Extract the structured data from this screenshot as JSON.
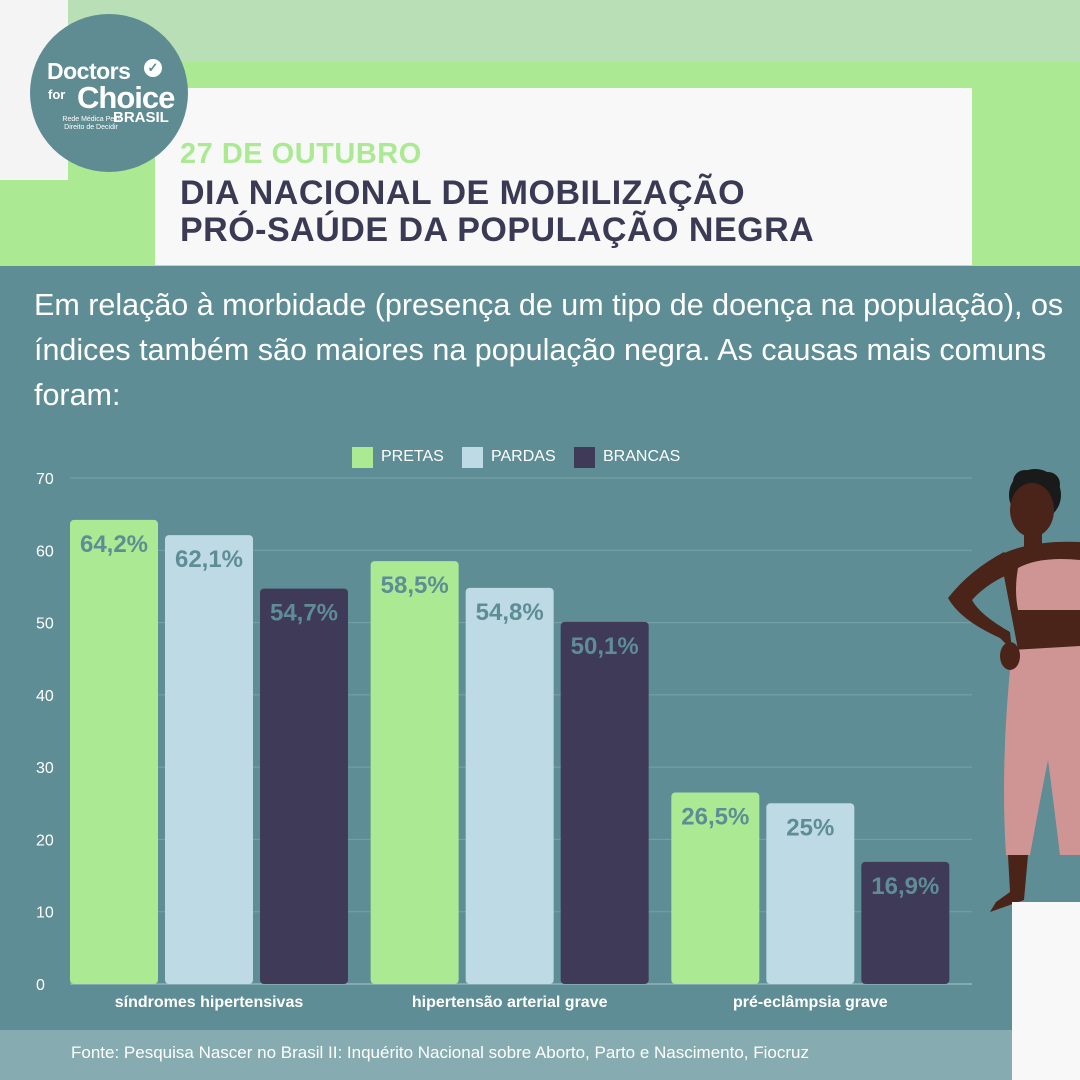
{
  "logo": {
    "line1": "Doctors",
    "line2": "for",
    "line3": "Choice",
    "line4": "BRASIL",
    "tagline": "Rede Médica Pelo Direito de Decidir",
    "check_icon": "check-circle-icon"
  },
  "header": {
    "date": "27 DE OUTUBRO",
    "title_line1": "DIA NACIONAL DE MOBILIZAÇÃO",
    "title_line2": "PRÓ-SAÚDE DA POPULAÇÃO NEGRA"
  },
  "intro": "Em relação à morbidade (presença de um tipo de doença na população), os índices também são maiores na população negra. As causas mais comuns foram:",
  "chart_data": {
    "type": "bar",
    "categories": [
      "síndromes hipertensivas",
      "hipertensão arterial grave",
      "pré-eclâmpsia grave"
    ],
    "series": [
      {
        "name": "PRETAS",
        "values": [
          64.2,
          58.5,
          26.5
        ],
        "labels": [
          "64,2%",
          "58,5%",
          "26,5%"
        ],
        "color": "#abe993",
        "label_color": "#5e8d95"
      },
      {
        "name": "PARDAS",
        "values": [
          62.1,
          54.8,
          25
        ],
        "labels": [
          "62,1%",
          "54,8%",
          "25%"
        ],
        "color": "#bedae4",
        "label_color": "#5e8d95"
      },
      {
        "name": "BRANCAS",
        "values": [
          54.7,
          50.1,
          16.9
        ],
        "labels": [
          "54,7%",
          "50,1%",
          "16,9%"
        ],
        "color": "#3e3a57",
        "label_color": "#5e8d95"
      }
    ],
    "ylim": [
      0,
      70
    ],
    "yticks": [
      0,
      10,
      20,
      30,
      40,
      50,
      60,
      70
    ],
    "grid": true,
    "legend": "top-center",
    "xlabel": "",
    "ylabel": ""
  },
  "footer": {
    "source": "Fonte: Pesquisa Nascer no Brasil II: Inquérito Nacional sobre Aborto, Parto e Nascimento, Fiocruz"
  },
  "illustration": {
    "icon": "woman-illustration-icon",
    "skin_color": "#4a2418",
    "outfit_color": "#cf9594"
  }
}
